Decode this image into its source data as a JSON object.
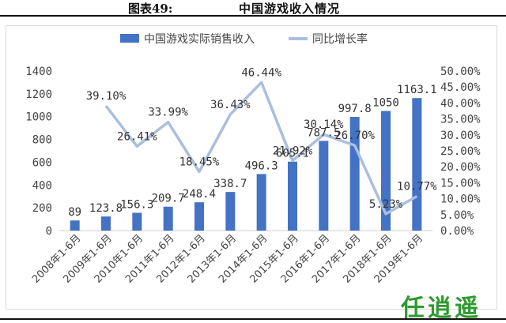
{
  "figure": {
    "number": "图表49:",
    "title": "中国游戏收入情况"
  },
  "watermark": "任逍遥",
  "chart_data": {
    "type": "bar",
    "categories": [
      "2008年1-6月",
      "2009年1-6月",
      "2010年1-6月",
      "2011年1-6月",
      "2012年1-6月",
      "2013年1-6月",
      "2014年1-6月",
      "2015年1-6月",
      "2016年1-6月",
      "2017年1-6月",
      "2018年1-6月",
      "2019年1-6月"
    ],
    "series": [
      {
        "name": "中国游戏实际销售收入",
        "type": "bar",
        "axis": "left",
        "color": "#4472c4",
        "values": [
          89,
          123.8,
          156.3,
          209.7,
          248.4,
          338.7,
          496.3,
          605.1,
          787.5,
          997.8,
          1050,
          1163.1
        ],
        "labels": [
          "89",
          "123.8",
          "156.3",
          "209.7",
          "248.4",
          "338.7",
          "496.3",
          "605.1",
          "787.5",
          "997.8",
          "1050",
          "1163.1"
        ]
      },
      {
        "name": "同比增长率",
        "type": "line",
        "axis": "right",
        "color": "#a9bfde",
        "values": [
          null,
          39.1,
          26.41,
          33.99,
          18.45,
          36.43,
          46.44,
          21.92,
          30.14,
          26.7,
          5.23,
          10.77
        ],
        "labels": [
          "",
          "39.10%",
          "26.41%",
          "33.99%",
          "18.45%",
          "36.43%",
          "46.44%",
          "21.92%",
          "30.14%",
          "26.70%",
          "5.23%",
          "10.77%"
        ]
      }
    ],
    "y_left": {
      "min": 0,
      "max": 1400,
      "step": 200,
      "ticks": [
        "0",
        "200",
        "400",
        "600",
        "800",
        "1000",
        "1200",
        "1400"
      ]
    },
    "y_right": {
      "min": 0,
      "max": 50,
      "step": 5,
      "ticks": [
        "0.00%",
        "5.00%",
        "10.00%",
        "15.00%",
        "20.00%",
        "25.00%",
        "30.00%",
        "35.00%",
        "40.00%",
        "45.00%",
        "50.00%"
      ]
    },
    "legend_position": "top",
    "grid": false,
    "x_label_rotation": -45
  }
}
